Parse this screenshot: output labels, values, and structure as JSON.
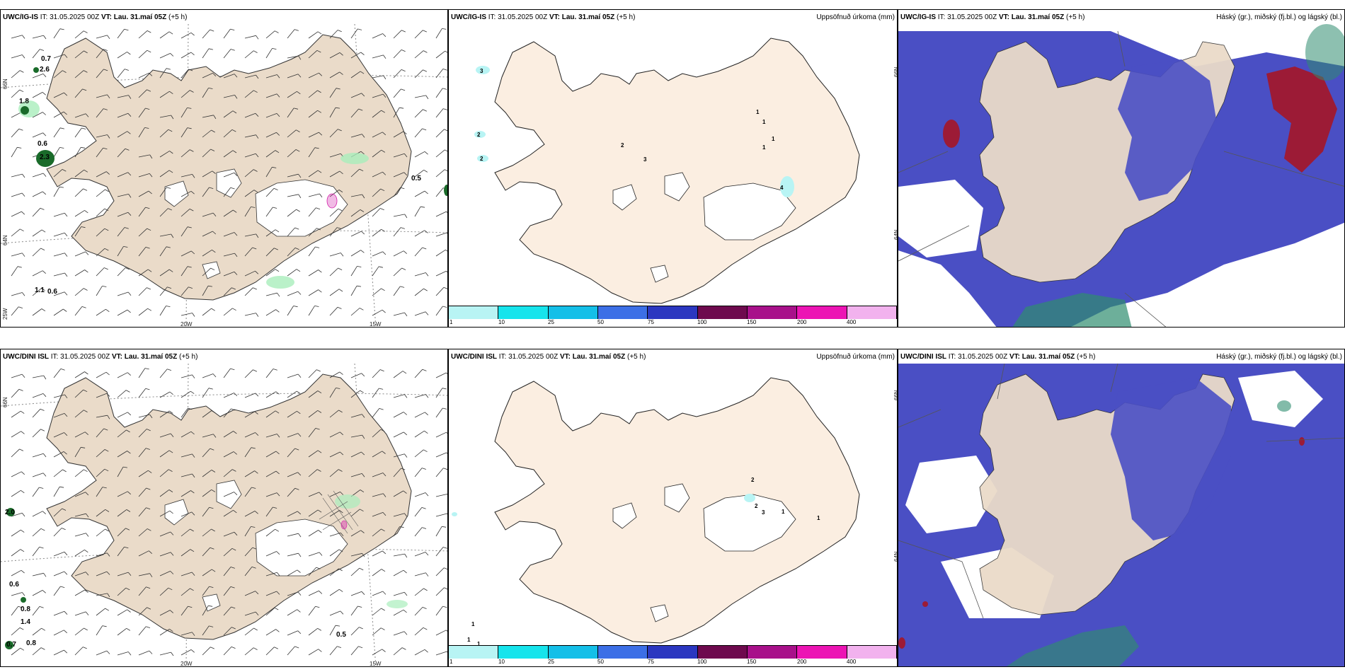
{
  "rows": [
    {
      "model": "UWC/IG-IS",
      "it_label": "IT:",
      "it_value": "31.05.2025 00Z",
      "vt_label": "VT: Lau. 31.maí 05Z",
      "offset": "(+5 h)",
      "wind_values": [
        "0.7",
        "2.6",
        "1.8",
        "0.6",
        "2.3",
        "0.5",
        "1.1",
        "0.6"
      ],
      "precip_values": [
        "3",
        "2",
        "2",
        "2",
        "3",
        "1",
        "1",
        "1",
        "1",
        "4"
      ]
    },
    {
      "model": "UWC/DINI ISL",
      "it_label": "IT:",
      "it_value": "31.05.2025 00Z",
      "vt_label": "VT: Lau. 31.maí 05Z",
      "offset": "(+5 h)",
      "wind_values": [
        "2.0",
        "0.6",
        "0.8",
        "1.4",
        "0.7",
        "0.8",
        "0.5"
      ],
      "precip_values": [
        "2",
        "2",
        "3",
        "1",
        "1",
        "1",
        "1",
        "1"
      ]
    }
  ],
  "precip_title": "Uppsöfnuð úrkoma (mm)",
  "cloud_title": "Háský (gr.), miðský (fj.bl.) og lágský (bl.)",
  "ticks": {
    "lat66": "66N",
    "lat64": "64N",
    "lon25": "25W",
    "lon20": "20W",
    "lon15": "15W"
  },
  "colorbar": {
    "labels": [
      "1",
      "10",
      "25",
      "50",
      "75",
      "100",
      "150",
      "200",
      "400"
    ],
    "colors": [
      "#b8f4f4",
      "#16e4ec",
      "#14bfe8",
      "#3c6fe6",
      "#2b37c0",
      "#6e0a4e",
      "#a8108a",
      "#ec14b4",
      "#f2b2ee"
    ]
  },
  "colors": {
    "land_wind": "#eadbc9",
    "land_precip": "#fbeee1",
    "cloud_high": "#2f8d6f",
    "cloud_mid": "#4a4fc4",
    "cloud_low": "#9c1b36"
  }
}
